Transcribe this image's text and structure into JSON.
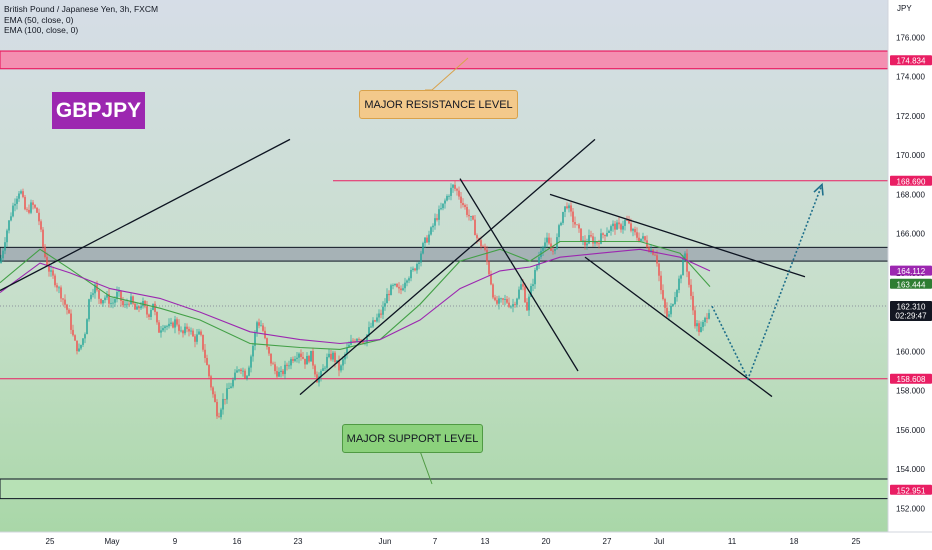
{
  "header": {
    "title": "British Pound / Japanese Yen, 3h, FXCM",
    "indicators": [
      "EMA (50, close, 0)",
      "EMA (100, close, 0)"
    ]
  },
  "symbol_label": "GBPJPY",
  "annotations": {
    "resistance_text": "MAJOR RESISTANCE LEVEL",
    "support_text": "MAJOR SUPPORT LEVEL"
  },
  "colors": {
    "bull": "#26a69a",
    "bear": "#ef5350",
    "ema50": "#43a047",
    "ema100": "#9c27b0",
    "level_line": "#e91e63",
    "resistance_fill": "#f48fb1",
    "support_fill": "#a5d6a7",
    "trend_line": "#0d1421",
    "projection": "#1f6f8b"
  },
  "chart_data": {
    "type": "candlestick",
    "title": "British Pound / Japanese Yen, 3h, FXCM",
    "ylabel": "JPY",
    "ylim": [
      150.8,
      177.9
    ],
    "y_ticks": [
      152.0,
      154.0,
      156.0,
      158.0,
      160.0,
      162.0,
      164.0,
      166.0,
      168.0,
      170.0,
      172.0,
      174.0,
      176.0
    ],
    "x_ticks": [
      "25",
      "May",
      "9",
      "16",
      "23",
      "Jun",
      "7",
      "13",
      "20",
      "27",
      "Jul",
      "11",
      "18",
      "25"
    ],
    "grid": false,
    "price_path": [
      [
        0,
        164.5
      ],
      [
        6,
        166.0
      ],
      [
        14,
        167.6
      ],
      [
        20,
        168.3
      ],
      [
        26,
        167.0
      ],
      [
        32,
        167.5
      ],
      [
        38,
        167.0
      ],
      [
        44,
        165.0
      ],
      [
        50,
        164.0
      ],
      [
        56,
        163.5
      ],
      [
        62,
        162.8
      ],
      [
        68,
        162.0
      ],
      [
        74,
        160.5
      ],
      [
        79,
        160.0
      ],
      [
        85,
        161.0
      ],
      [
        90,
        163.0
      ],
      [
        95,
        163.3
      ],
      [
        100,
        162.6
      ],
      [
        106,
        162.8
      ],
      [
        112,
        162.4
      ],
      [
        118,
        163.0
      ],
      [
        124,
        162.2
      ],
      [
        130,
        162.7
      ],
      [
        136,
        162.0
      ],
      [
        142,
        162.5
      ],
      [
        148,
        161.8
      ],
      [
        153,
        162.5
      ],
      [
        158,
        161.0
      ],
      [
        163,
        161.4
      ],
      [
        170,
        161.2
      ],
      [
        176,
        161.6
      ],
      [
        182,
        160.8
      ],
      [
        188,
        161.3
      ],
      [
        194,
        160.6
      ],
      [
        200,
        160.9
      ],
      [
        206,
        159.5
      ],
      [
        212,
        158.0
      ],
      [
        218,
        156.7
      ],
      [
        222,
        157.4
      ],
      [
        228,
        158.0
      ],
      [
        234,
        158.6
      ],
      [
        240,
        159.3
      ],
      [
        246,
        158.7
      ],
      [
        252,
        160.0
      ],
      [
        257,
        161.5
      ],
      [
        262,
        161.3
      ],
      [
        266,
        160.3
      ],
      [
        270,
        159.6
      ],
      [
        275,
        159.0
      ],
      [
        281,
        158.8
      ],
      [
        287,
        159.3
      ],
      [
        293,
        159.7
      ],
      [
        299,
        160.0
      ],
      [
        305,
        159.5
      ],
      [
        311,
        159.8
      ],
      [
        317,
        158.6
      ],
      [
        321,
        158.8
      ],
      [
        327,
        159.6
      ],
      [
        333,
        159.8
      ],
      [
        340,
        159.0
      ],
      [
        346,
        160.0
      ],
      [
        352,
        160.5
      ],
      [
        358,
        160.8
      ],
      [
        364,
        160.5
      ],
      [
        370,
        161.2
      ],
      [
        376,
        161.6
      ],
      [
        382,
        162.0
      ],
      [
        388,
        163.0
      ],
      [
        394,
        163.3
      ],
      [
        400,
        163.0
      ],
      [
        406,
        163.8
      ],
      [
        412,
        164.0
      ],
      [
        418,
        164.6
      ],
      [
        424,
        165.5
      ],
      [
        430,
        166.0
      ],
      [
        436,
        166.8
      ],
      [
        442,
        167.3
      ],
      [
        448,
        168.0
      ],
      [
        453,
        168.4
      ],
      [
        458,
        168.1
      ],
      [
        463,
        167.5
      ],
      [
        468,
        167.0
      ],
      [
        473,
        166.5
      ],
      [
        478,
        165.6
      ],
      [
        484,
        165.3
      ],
      [
        490,
        163.8
      ],
      [
        495,
        162.4
      ],
      [
        500,
        162.5
      ],
      [
        506,
        162.6
      ],
      [
        512,
        162.3
      ],
      [
        517,
        162.8
      ],
      [
        522,
        163.5
      ],
      [
        527,
        162.2
      ],
      [
        532,
        163.4
      ],
      [
        537,
        164.4
      ],
      [
        542,
        165.5
      ],
      [
        547,
        165.6
      ],
      [
        552,
        165.0
      ],
      [
        557,
        165.7
      ],
      [
        562,
        167.0
      ],
      [
        567,
        167.5
      ],
      [
        572,
        166.8
      ],
      [
        578,
        166.2
      ],
      [
        584,
        165.4
      ],
      [
        590,
        165.8
      ],
      [
        596,
        165.5
      ],
      [
        602,
        165.9
      ],
      [
        608,
        166.2
      ],
      [
        614,
        166.4
      ],
      [
        620,
        166.3
      ],
      [
        626,
        166.7
      ],
      [
        632,
        166.1
      ],
      [
        638,
        165.8
      ],
      [
        644,
        165.7
      ],
      [
        650,
        165.2
      ],
      [
        656,
        165.0
      ],
      [
        662,
        162.7
      ],
      [
        668,
        161.6
      ],
      [
        674,
        162.8
      ],
      [
        680,
        163.8
      ],
      [
        685,
        165.0
      ],
      [
        690,
        163.0
      ],
      [
        695,
        161.5
      ],
      [
        700,
        161.0
      ],
      [
        705,
        161.6
      ],
      [
        710,
        162.3
      ]
    ],
    "series": [
      {
        "name": "EMA (50, close, 0)",
        "values": [
          [
            0,
            163.5
          ],
          [
            40,
            165.2
          ],
          [
            70,
            164.2
          ],
          [
            110,
            162.8
          ],
          [
            160,
            162.2
          ],
          [
            200,
            161.6
          ],
          [
            250,
            160.4
          ],
          [
            300,
            160.2
          ],
          [
            340,
            160.1
          ],
          [
            380,
            160.6
          ],
          [
            420,
            162.4
          ],
          [
            460,
            164.6
          ],
          [
            500,
            165.2
          ],
          [
            530,
            164.6
          ],
          [
            560,
            165.6
          ],
          [
            600,
            165.6
          ],
          [
            640,
            165.6
          ],
          [
            680,
            165.0
          ],
          [
            710,
            163.3
          ]
        ]
      },
      {
        "name": "EMA (100, close, 0)",
        "values": [
          [
            0,
            163.0
          ],
          [
            40,
            164.5
          ],
          [
            70,
            164.0
          ],
          [
            110,
            163.2
          ],
          [
            160,
            162.7
          ],
          [
            200,
            162.0
          ],
          [
            250,
            161.0
          ],
          [
            300,
            160.6
          ],
          [
            340,
            160.4
          ],
          [
            380,
            160.6
          ],
          [
            420,
            161.6
          ],
          [
            460,
            163.2
          ],
          [
            500,
            164.1
          ],
          [
            530,
            164.3
          ],
          [
            560,
            164.8
          ],
          [
            600,
            165.0
          ],
          [
            640,
            165.2
          ],
          [
            680,
            164.8
          ],
          [
            710,
            164.1
          ]
        ]
      }
    ],
    "price_levels": [
      {
        "price": 174.834,
        "label": "174.834"
      },
      {
        "price": 168.69,
        "label": "168.690"
      },
      {
        "price": 158.608,
        "label": "158.608"
      },
      {
        "price": 152.951,
        "label": "152.951"
      }
    ],
    "last_price": {
      "value": "162.310",
      "countdown": "02:29:47"
    },
    "ema_badges": {
      "ema100": "164.112",
      "ema50": "163.444"
    },
    "zones": {
      "resistance": [
        174.4,
        175.3
      ],
      "pivot": [
        164.6,
        165.3
      ],
      "support": [
        152.5,
        153.5
      ]
    },
    "trend_lines": [
      {
        "from": [
          0,
          163.1
        ],
        "to": [
          290,
          170.8
        ]
      },
      {
        "from": [
          300,
          157.8
        ],
        "to": [
          595,
          170.8
        ]
      },
      {
        "from": [
          460,
          168.8
        ],
        "to": [
          578,
          159.0
        ]
      },
      {
        "from": [
          550,
          168.0
        ],
        "to": [
          805,
          163.8
        ]
      },
      {
        "from": [
          585,
          164.8
        ],
        "to": [
          772,
          157.7
        ]
      }
    ],
    "projection": [
      [
        712,
        162.3
      ],
      [
        748,
        158.6
      ],
      [
        822,
        168.5
      ]
    ]
  }
}
